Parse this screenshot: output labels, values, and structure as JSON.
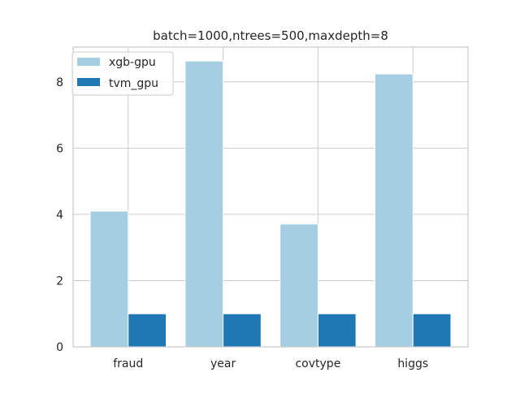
{
  "chart_data": {
    "type": "bar",
    "title": "batch=1000,ntrees=500,maxdepth=8",
    "xlabel": "",
    "ylabel": "",
    "categories": [
      "fraud",
      "year",
      "covtype",
      "higgs"
    ],
    "series": [
      {
        "name": "xgb-gpu",
        "values": [
          4.1,
          8.63,
          3.71,
          8.24
        ],
        "color": "#a6cee3"
      },
      {
        "name": "tvm_gpu",
        "values": [
          1.0,
          1.0,
          1.0,
          1.0
        ],
        "color": "#1f78b4"
      }
    ],
    "ylim": [
      0,
      9.05
    ],
    "yticks": [
      0,
      2,
      4,
      6,
      8
    ],
    "grid": true,
    "legend_position": "top-left"
  }
}
